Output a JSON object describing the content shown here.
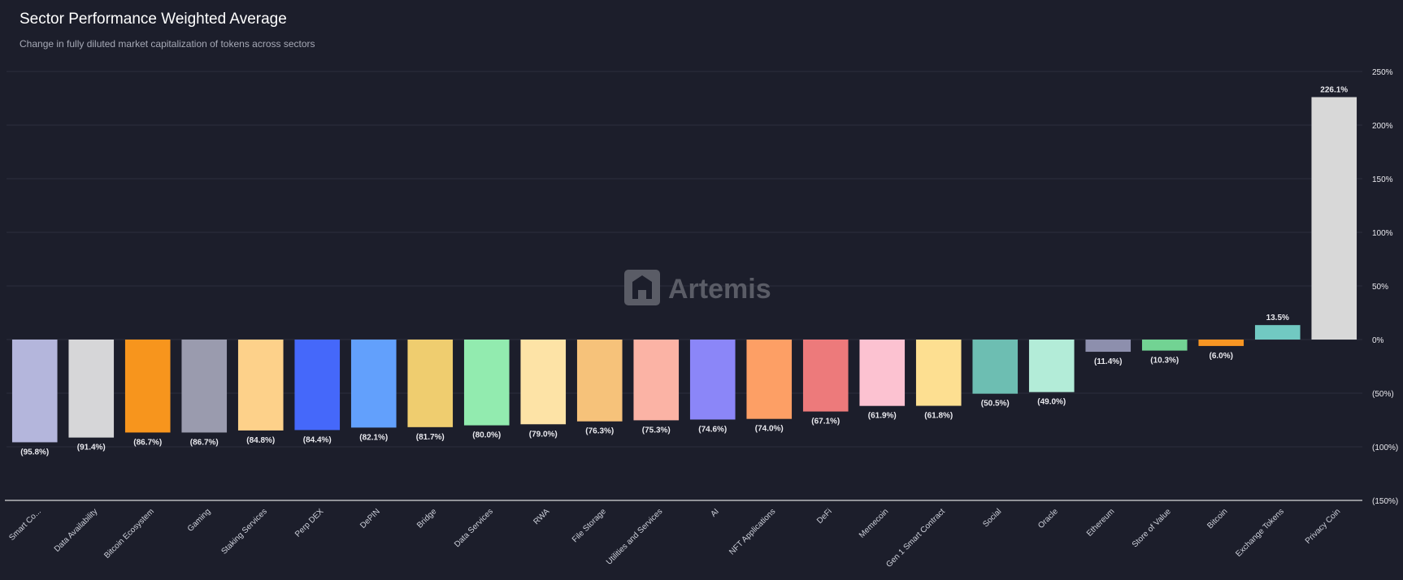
{
  "chart_data": {
    "type": "bar",
    "title": "Sector Performance Weighted Average",
    "subtitle": "Change in fully diluted market capitalization of tokens across sectors",
    "categories": [
      "Smart Co...",
      "Data Availability",
      "Bitcoin Ecosystem",
      "Gaming",
      "Staking Services",
      "Perp DEX",
      "DePIN",
      "Bridge",
      "Data Services",
      "RWA",
      "File Storage",
      "Utilities and Services",
      "AI",
      "NFT Applications",
      "DeFi",
      "Memecoin",
      "Gen 1 Smart Contract",
      "Social",
      "Oracle",
      "Ethereum",
      "Store of Value",
      "Bitcoin",
      "Exchange Tokens",
      "Privacy Coin"
    ],
    "values": [
      -95.8,
      -91.4,
      -86.7,
      -86.7,
      -84.8,
      -84.4,
      -82.1,
      -81.7,
      -80.0,
      -79.0,
      -76.3,
      -75.3,
      -74.6,
      -74.0,
      -67.1,
      -61.9,
      -61.8,
      -50.5,
      -49.0,
      -11.4,
      -10.3,
      -6.0,
      13.5,
      226.1
    ],
    "value_labels": [
      "(95.8%)",
      "(91.4%)",
      "(86.7%)",
      "(86.7%)",
      "(84.8%)",
      "(84.4%)",
      "(82.1%)",
      "(81.7%)",
      "(80.0%)",
      "(79.0%)",
      "(76.3%)",
      "(75.3%)",
      "(74.6%)",
      "(74.0%)",
      "(67.1%)",
      "(61.9%)",
      "(61.8%)",
      "(50.5%)",
      "(49.0%)",
      "(11.4%)",
      "(10.3%)",
      "(6.0%)",
      "13.5%",
      "226.1%"
    ],
    "colors": [
      "#b4b6dc",
      "#d6d6d8",
      "#f7951d",
      "#9a9bae",
      "#fdd18a",
      "#4568fa",
      "#62a0fc",
      "#efcd6f",
      "#92ebaf",
      "#fde3a6",
      "#f6c27a",
      "#fbb3a5",
      "#8b86f8",
      "#fd9f65",
      "#ed7a7b",
      "#fcc2d1",
      "#fddf91",
      "#6dbeb2",
      "#b3ecd8",
      "#8d8fad",
      "#72d393",
      "#f79523",
      "#71c9c2",
      "#d8d8d8"
    ],
    "ylim": [
      -150,
      250
    ],
    "y_ticks": [
      250,
      200,
      150,
      100,
      50,
      0,
      -50,
      -100,
      -150
    ],
    "y_tick_labels": [
      "250%",
      "200%",
      "150%",
      "100%",
      "50%",
      "0%",
      "(50%)",
      "(100%)",
      "(150%)"
    ],
    "y_axis_position": "right",
    "grid": true,
    "xlabel": "",
    "ylabel": ""
  },
  "watermark": {
    "text": "Artemis",
    "icon": "artemis-logo-icon"
  }
}
